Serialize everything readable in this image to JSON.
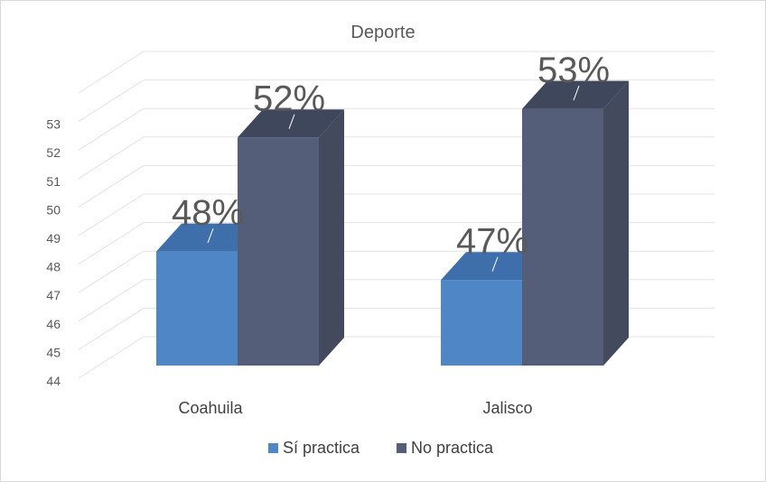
{
  "chart_data": {
    "type": "bar",
    "title": "Deporte",
    "categories": [
      "Coahuila",
      "Jalisco"
    ],
    "series": [
      {
        "name": "Sí practica",
        "values": [
          48,
          47
        ],
        "labels": [
          "48%",
          "47%"
        ],
        "color": "#4f86c6",
        "top_color": "#3f6fab"
      },
      {
        "name": "No practica",
        "values": [
          52,
          53
        ],
        "labels": [
          "52%",
          "53%"
        ],
        "color": "#545e78",
        "top_color": "#3f475d",
        "side_color": "#434a5e"
      }
    ],
    "y_ticks": [
      44,
      45,
      46,
      47,
      48,
      49,
      50,
      51,
      52,
      53
    ],
    "ylim": [
      44,
      53
    ],
    "grid": true,
    "legend_position": "bottom",
    "xlabel": "",
    "ylabel": ""
  }
}
